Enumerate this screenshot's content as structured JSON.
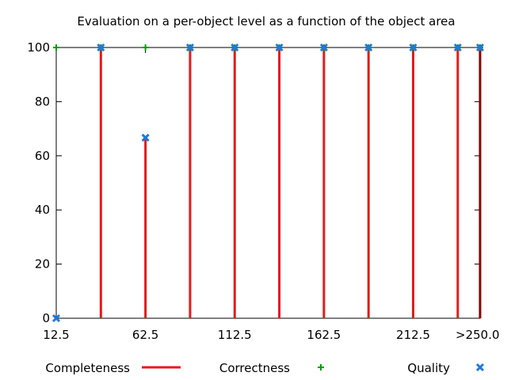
{
  "chart_data": {
    "type": "bar",
    "title": "Evaluation on a per-object level as a function of the object area",
    "xlabel": "",
    "ylabel": "",
    "x": [
      12.5,
      37.5,
      62.5,
      87.5,
      112.5,
      137.5,
      162.5,
      187.5,
      212.5,
      237.5,
      250
    ],
    "xlim": [
      12.5,
      250
    ],
    "ylim": [
      0,
      100
    ],
    "x_ticks": [
      {
        "value": 12.5,
        "label": "12.5"
      },
      {
        "value": 62.5,
        "label": "62.5"
      },
      {
        "value": 112.5,
        "label": "112.5"
      },
      {
        "value": 162.5,
        "label": "162.5"
      },
      {
        "value": 212.5,
        "label": "212.5"
      },
      {
        "value": 250,
        "label": ">250.0"
      }
    ],
    "y_ticks": [
      {
        "value": 0,
        "label": "0"
      },
      {
        "value": 20,
        "label": "20"
      },
      {
        "value": 40,
        "label": "40"
      },
      {
        "value": 60,
        "label": "60"
      },
      {
        "value": 80,
        "label": "80"
      },
      {
        "value": 100,
        "label": "100"
      }
    ],
    "series": [
      {
        "name": "Completeness",
        "style": "impulses",
        "color": "#e41a1c",
        "values": [
          0,
          100,
          66.7,
          100,
          100,
          100,
          100,
          100,
          100,
          100,
          100
        ]
      },
      {
        "name": "Correctness",
        "style": "plus",
        "color": "#00a000",
        "values": [
          100,
          100,
          100,
          100,
          100,
          100,
          100,
          100,
          100,
          100,
          100
        ]
      },
      {
        "name": "Quality",
        "style": "cross",
        "color": "#1e78e0",
        "values": [
          0,
          100,
          66.7,
          100,
          100,
          100,
          100,
          100,
          100,
          100,
          100
        ]
      }
    ],
    "grid": false,
    "legend_position": "bottom"
  }
}
